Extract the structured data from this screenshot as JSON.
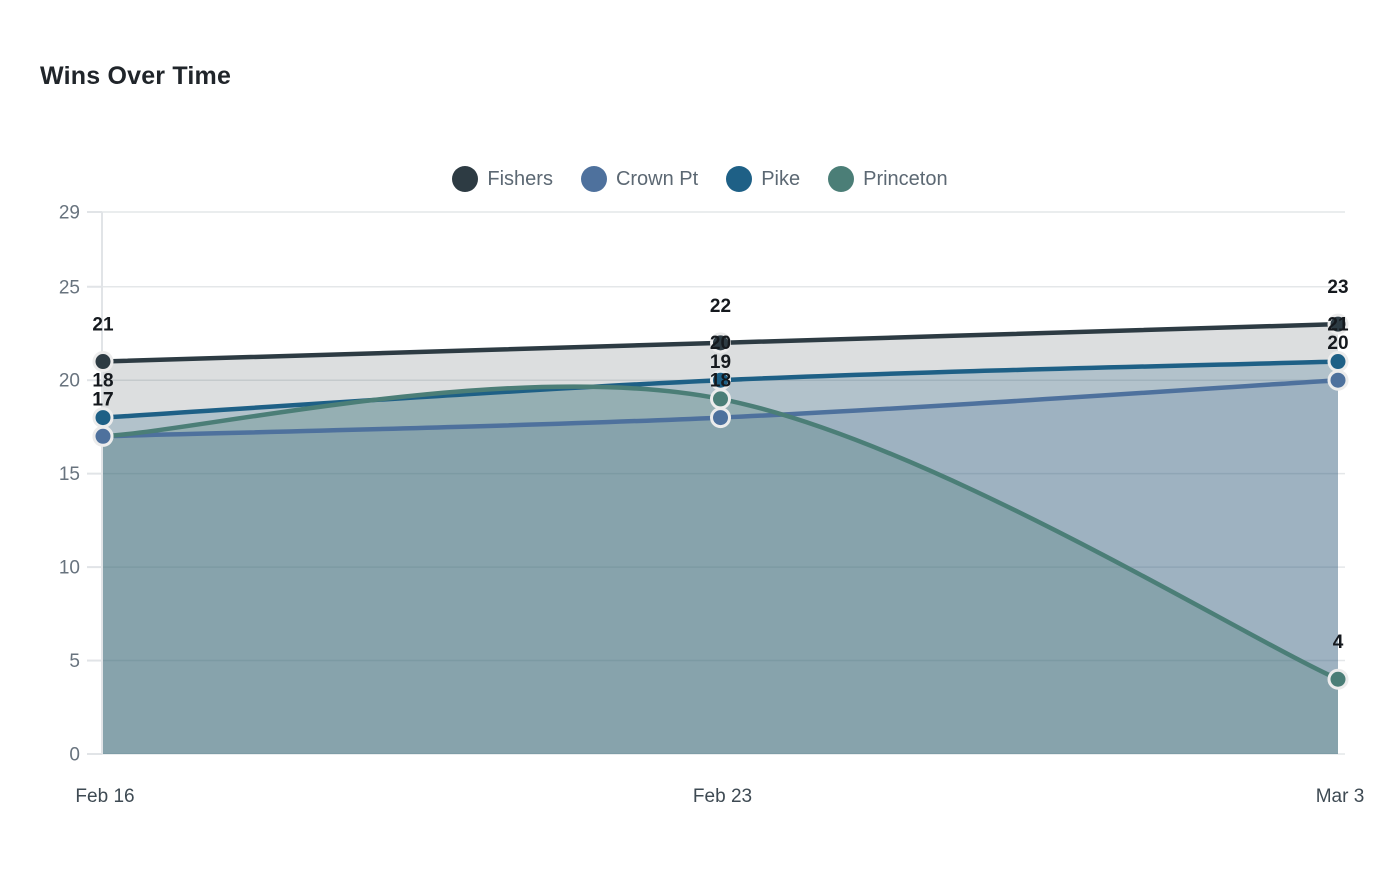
{
  "title": "Wins Over Time",
  "palette": {
    "background": "#ffffff",
    "grid_line": "#e4e7e9",
    "axis_line": "#e1e4e7",
    "y_tick_text": "#68737e",
    "x_tick_text": "#3e4a53",
    "value_label_text": "#15191e",
    "legend_text": "#5c6873",
    "title_text": "#20252a",
    "point_ring": "#ececec"
  },
  "chart_data": {
    "type": "area",
    "title": "Wins Over Time",
    "xlabel": "",
    "ylabel": "",
    "x_labels": [
      "Feb 16",
      "Feb 23",
      "Mar 3"
    ],
    "y_ticks": [
      0,
      5,
      10,
      15,
      20,
      25,
      29
    ],
    "ylim": [
      0,
      29
    ],
    "grid": true,
    "legend_position": "top-center",
    "curve": "smooth",
    "point_labels_shown": true,
    "series": [
      {
        "name": "Fishers",
        "color": "#2d3b43",
        "fill_opacity": 0.17,
        "values": [
          21,
          22,
          23
        ]
      },
      {
        "name": "Crown Pt",
        "color": "#4e719d",
        "fill_opacity": 0.18,
        "values": [
          17,
          18,
          20
        ]
      },
      {
        "name": "Pike",
        "color": "#1e6086",
        "fill_opacity": 0.22,
        "values": [
          18,
          20,
          21
        ]
      },
      {
        "name": "Princeton",
        "color": "#4b7e77",
        "fill_opacity": 0.28,
        "values": [
          17,
          19,
          4
        ]
      }
    ]
  }
}
